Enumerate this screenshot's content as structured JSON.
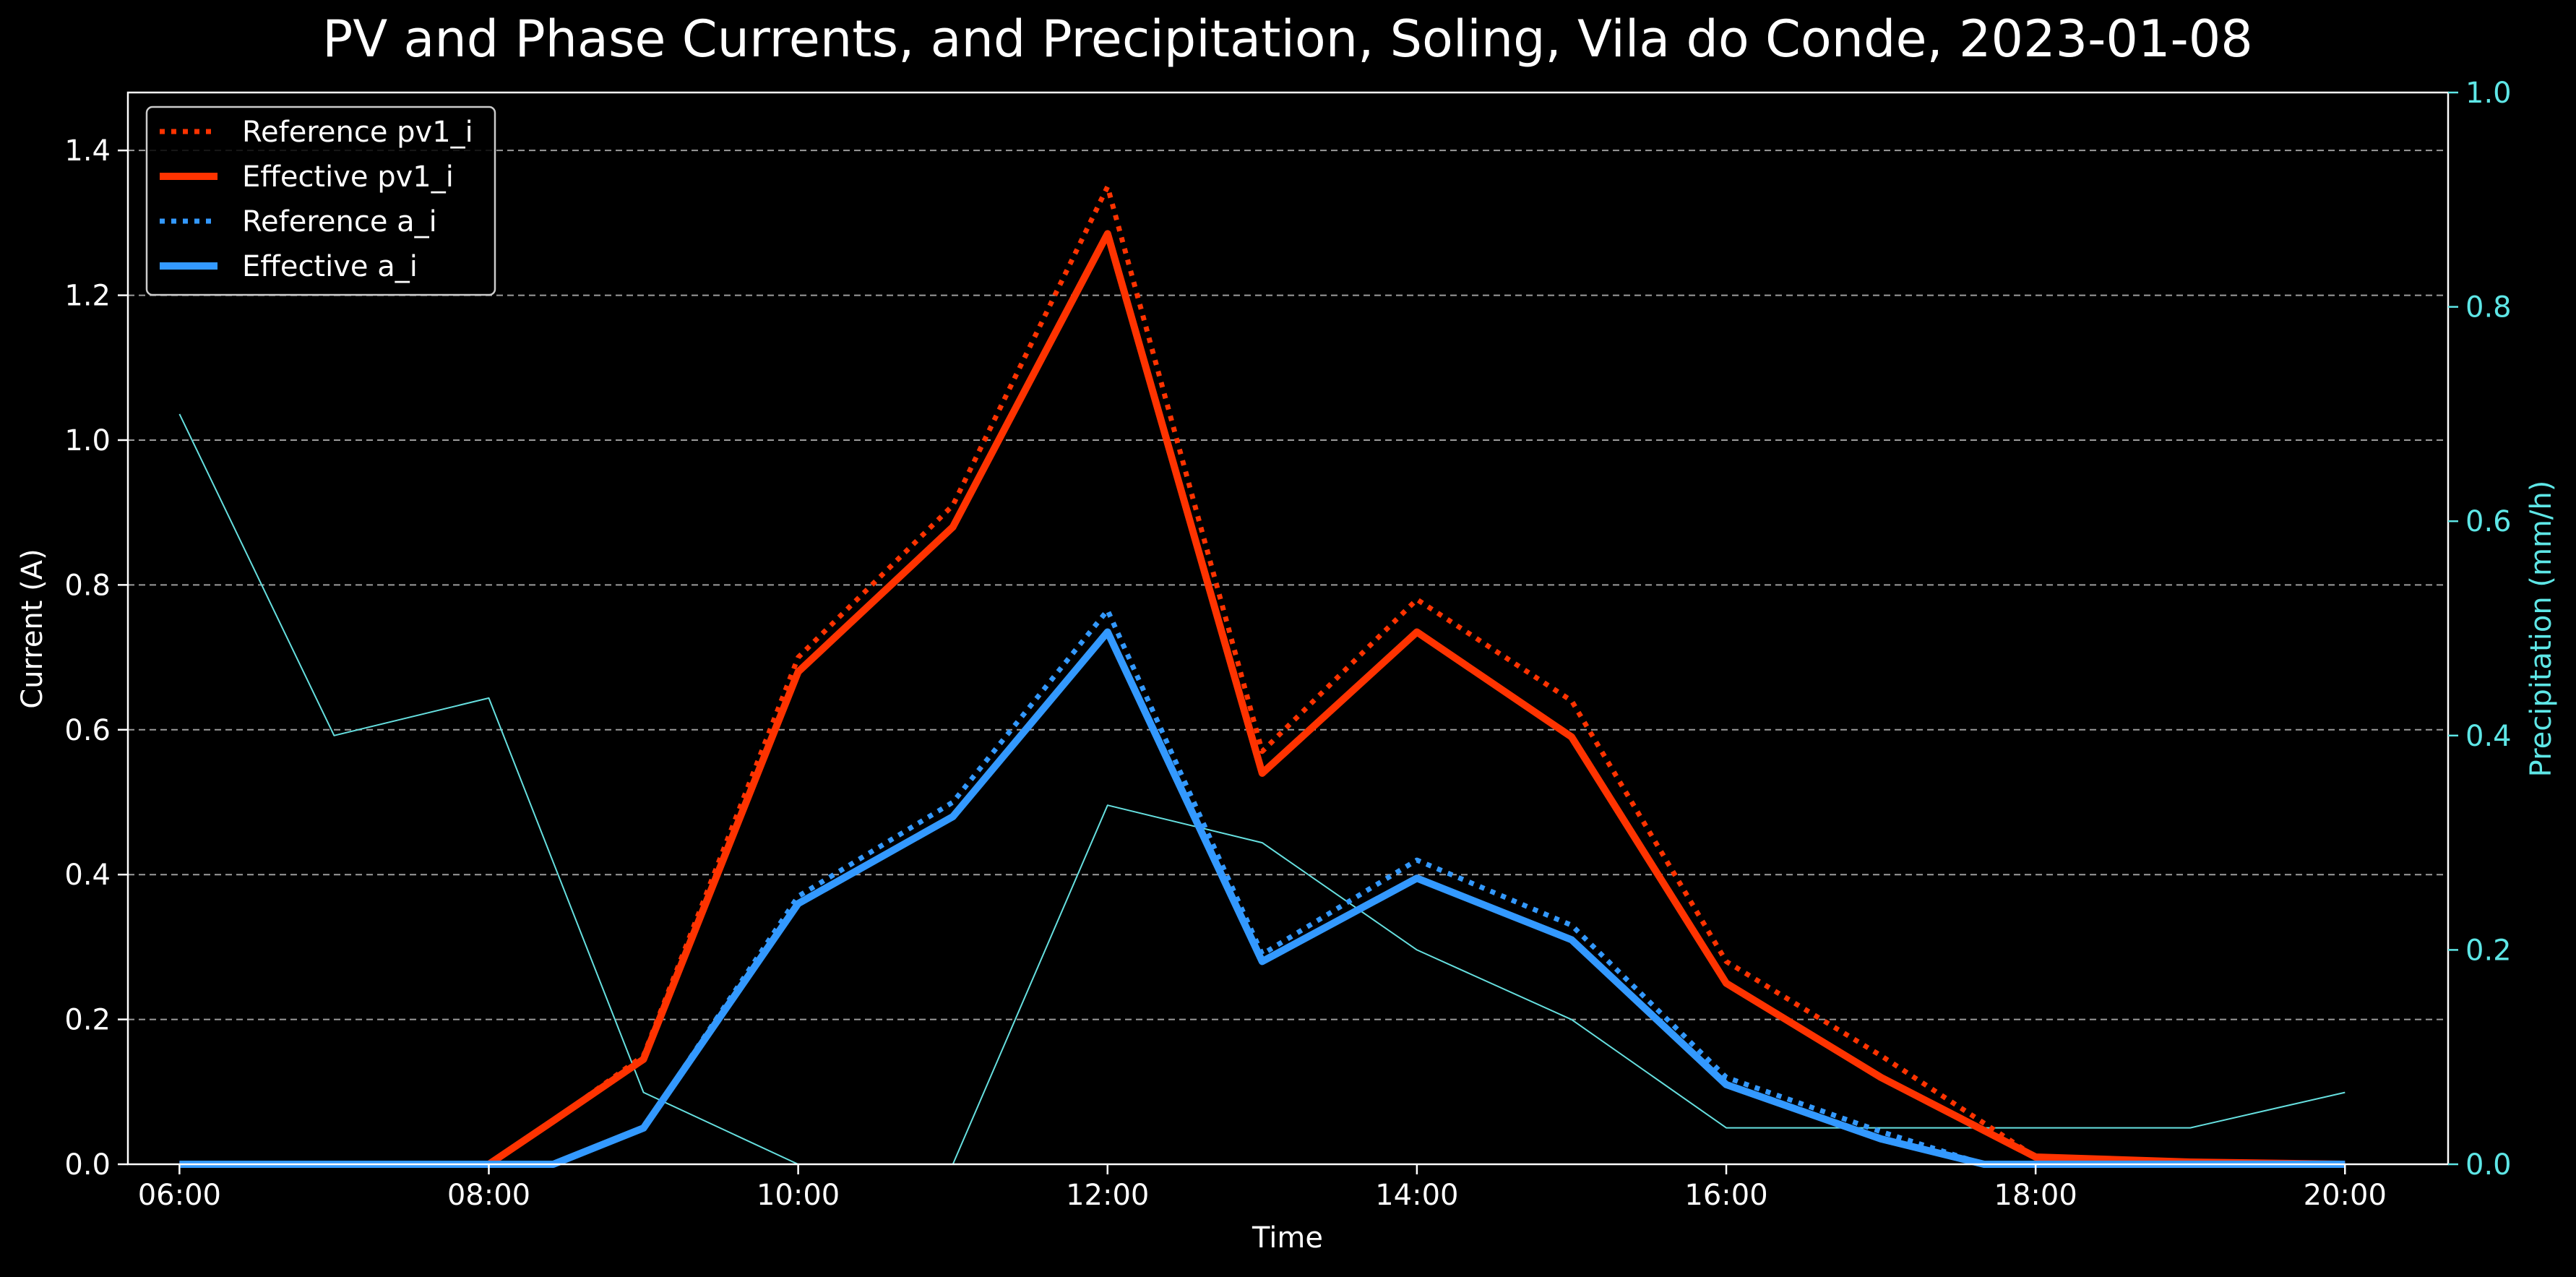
{
  "chart_data": {
    "type": "line",
    "title": "PV and Phase Currents, and Precipitation, Soling, Vila do Conde, 2023-01-08",
    "xlabel": "Time",
    "ylabel": "Current (A)",
    "y2label": "Precipitation (mm/h)",
    "xlim": [
      "05:40",
      "20:40"
    ],
    "ylim": [
      0,
      1.48
    ],
    "y2lim": [
      0,
      1.0
    ],
    "x_ticks": [
      "06:00",
      "08:00",
      "10:00",
      "12:00",
      "14:00",
      "16:00",
      "18:00",
      "20:00"
    ],
    "y_ticks": [
      "0.0",
      "0.2",
      "0.4",
      "0.6",
      "0.8",
      "1.0",
      "1.2",
      "1.4"
    ],
    "y2_ticks": [
      "0.0",
      "0.2",
      "0.4",
      "0.6",
      "0.8",
      "1.0"
    ],
    "grid": "horizontal dashed",
    "legend_position": "top-left",
    "colors": {
      "background": "#000000",
      "axes": "#ffffff",
      "grid": "#b8b8b8",
      "secondary_axis": "#5ee6e6",
      "pv": "#ff3300",
      "phase": "#3399ff",
      "precipitation": "#66e0e0"
    },
    "series": [
      {
        "name": "Reference pv1_i",
        "axis": "left",
        "style": "dotted",
        "color": "#ff3300",
        "points": [
          {
            "x": "06:00",
            "y": 0.0
          },
          {
            "x": "08:00",
            "y": 0.0
          },
          {
            "x": "08:25",
            "y": 0.06
          },
          {
            "x": "09:00",
            "y": 0.15
          },
          {
            "x": "10:00",
            "y": 0.7
          },
          {
            "x": "11:00",
            "y": 0.91
          },
          {
            "x": "12:00",
            "y": 1.35
          },
          {
            "x": "13:00",
            "y": 0.57
          },
          {
            "x": "14:00",
            "y": 0.78
          },
          {
            "x": "15:00",
            "y": 0.64
          },
          {
            "x": "16:00",
            "y": 0.28
          },
          {
            "x": "17:00",
            "y": 0.15
          },
          {
            "x": "18:00",
            "y": 0.01
          },
          {
            "x": "19:00",
            "y": 0.003
          },
          {
            "x": "20:00",
            "y": 0.0
          }
        ]
      },
      {
        "name": "Effective pv1_i",
        "axis": "left",
        "style": "solid",
        "color": "#ff3300",
        "points": [
          {
            "x": "06:00",
            "y": 0.0
          },
          {
            "x": "08:00",
            "y": 0.0
          },
          {
            "x": "08:25",
            "y": 0.06
          },
          {
            "x": "09:00",
            "y": 0.145
          },
          {
            "x": "10:00",
            "y": 0.68
          },
          {
            "x": "11:00",
            "y": 0.88
          },
          {
            "x": "12:00",
            "y": 1.285
          },
          {
            "x": "13:00",
            "y": 0.54
          },
          {
            "x": "14:00",
            "y": 0.735
          },
          {
            "x": "15:00",
            "y": 0.59
          },
          {
            "x": "16:00",
            "y": 0.25
          },
          {
            "x": "17:00",
            "y": 0.12
          },
          {
            "x": "18:00",
            "y": 0.01
          },
          {
            "x": "19:00",
            "y": 0.003
          },
          {
            "x": "20:00",
            "y": 0.0
          }
        ]
      },
      {
        "name": "Reference a_i",
        "axis": "left",
        "style": "dotted",
        "color": "#3399ff",
        "points": [
          {
            "x": "06:00",
            "y": 0.0
          },
          {
            "x": "08:25",
            "y": 0.0
          },
          {
            "x": "09:00",
            "y": 0.05
          },
          {
            "x": "10:00",
            "y": 0.37
          },
          {
            "x": "11:00",
            "y": 0.5
          },
          {
            "x": "12:00",
            "y": 0.765
          },
          {
            "x": "13:00",
            "y": 0.29
          },
          {
            "x": "14:00",
            "y": 0.42
          },
          {
            "x": "15:00",
            "y": 0.33
          },
          {
            "x": "16:00",
            "y": 0.12
          },
          {
            "x": "17:00",
            "y": 0.045
          },
          {
            "x": "17:40",
            "y": 0.0
          },
          {
            "x": "20:00",
            "y": 0.0
          }
        ]
      },
      {
        "name": "Effective a_i",
        "axis": "left",
        "style": "solid",
        "color": "#3399ff",
        "points": [
          {
            "x": "06:00",
            "y": 0.0
          },
          {
            "x": "08:25",
            "y": 0.0
          },
          {
            "x": "09:00",
            "y": 0.05
          },
          {
            "x": "10:00",
            "y": 0.36
          },
          {
            "x": "11:00",
            "y": 0.48
          },
          {
            "x": "12:00",
            "y": 0.735
          },
          {
            "x": "13:00",
            "y": 0.28
          },
          {
            "x": "14:00",
            "y": 0.395
          },
          {
            "x": "15:00",
            "y": 0.31
          },
          {
            "x": "16:00",
            "y": 0.11
          },
          {
            "x": "17:00",
            "y": 0.035
          },
          {
            "x": "17:40",
            "y": 0.0
          },
          {
            "x": "20:00",
            "y": 0.0
          }
        ]
      },
      {
        "name": "",
        "axis": "right",
        "style": "thin",
        "color": "#66e0e0",
        "points": [
          {
            "x": "06:00",
            "y": 0.7
          },
          {
            "x": "07:00",
            "y": 0.4
          },
          {
            "x": "08:00",
            "y": 0.435
          },
          {
            "x": "09:00",
            "y": 0.067
          },
          {
            "x": "10:00",
            "y": 0.0
          },
          {
            "x": "11:00",
            "y": 0.0
          },
          {
            "x": "12:00",
            "y": 0.335
          },
          {
            "x": "13:00",
            "y": 0.3
          },
          {
            "x": "14:00",
            "y": 0.2
          },
          {
            "x": "15:00",
            "y": 0.135
          },
          {
            "x": "16:00",
            "y": 0.034
          },
          {
            "x": "17:00",
            "y": 0.034
          },
          {
            "x": "18:00",
            "y": 0.034
          },
          {
            "x": "19:00",
            "y": 0.034
          },
          {
            "x": "20:00",
            "y": 0.067
          }
        ]
      }
    ]
  }
}
